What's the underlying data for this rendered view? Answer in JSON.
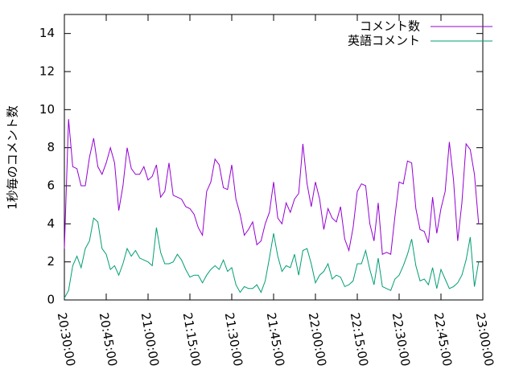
{
  "chart_data": {
    "type": "line",
    "y_label": "1秒毎のコメント数",
    "x": [
      "20:30:00",
      "20:31:30",
      "20:33:00",
      "20:34:30",
      "20:36:00",
      "20:37:30",
      "20:39:00",
      "20:40:30",
      "20:42:00",
      "20:43:30",
      "20:45:00",
      "20:46:30",
      "20:48:00",
      "20:49:30",
      "20:51:00",
      "20:52:30",
      "20:54:00",
      "20:55:30",
      "20:57:00",
      "20:58:30",
      "21:00:00",
      "21:01:30",
      "21:03:00",
      "21:04:30",
      "21:06:00",
      "21:07:30",
      "21:09:00",
      "21:10:30",
      "21:12:00",
      "21:13:30",
      "21:15:00",
      "21:16:30",
      "21:18:00",
      "21:19:30",
      "21:21:00",
      "21:22:30",
      "21:24:00",
      "21:25:30",
      "21:27:00",
      "21:28:30",
      "21:30:00",
      "21:31:30",
      "21:33:00",
      "21:34:30",
      "21:36:00",
      "21:37:30",
      "21:39:00",
      "21:40:30",
      "21:42:00",
      "21:43:30",
      "21:45:00",
      "21:46:30",
      "21:48:00",
      "21:49:30",
      "21:51:00",
      "21:52:30",
      "21:54:00",
      "21:55:30",
      "21:57:00",
      "21:58:30",
      "22:00:00",
      "22:01:30",
      "22:03:00",
      "22:04:30",
      "22:06:00",
      "22:07:30",
      "22:09:00",
      "22:10:30",
      "22:12:00",
      "22:13:30",
      "22:15:00",
      "22:16:30",
      "22:18:00",
      "22:19:30",
      "22:21:00",
      "22:22:30",
      "22:24:00",
      "22:25:30",
      "22:27:00",
      "22:28:30",
      "22:30:00",
      "22:31:30",
      "22:33:00",
      "22:34:30",
      "22:36:00",
      "22:37:30",
      "22:39:00",
      "22:40:30",
      "22:42:00",
      "22:43:30",
      "22:45:00",
      "22:46:30",
      "22:48:00",
      "22:49:30",
      "22:51:00",
      "22:52:30",
      "22:54:00",
      "22:55:30",
      "22:57:00",
      "22:58:30"
    ],
    "series": [
      {
        "name": "コメント数",
        "color": "#9400d3",
        "values": [
          2.7,
          9.5,
          7,
          6.9,
          6,
          6,
          7.5,
          8.5,
          7,
          6.6,
          7.2,
          8,
          7.2,
          4.7,
          6,
          8,
          6.9,
          6.6,
          6.6,
          7,
          6.3,
          6.5,
          7.1,
          5.4,
          5.7,
          7.2,
          5.5,
          5.4,
          5.3,
          4.9,
          4.8,
          4.5,
          3.8,
          3.4,
          5.7,
          6.2,
          7.4,
          7.1,
          5.9,
          5.8,
          7.1,
          5.3,
          4.5,
          3.4,
          3.7,
          4.1,
          2.9,
          3.1,
          4,
          4.6,
          6.2,
          4.3,
          4,
          5.1,
          4.6,
          5.3,
          5.6,
          8.2,
          6.1,
          4.9,
          6.2,
          5.3,
          3.7,
          4.8,
          4.3,
          4.1,
          4.9,
          3.2,
          2.6,
          3.8,
          5.7,
          6.1,
          6,
          4,
          3.1,
          5.1,
          2.4,
          2.5,
          2.4,
          4.4,
          6.2,
          6.1,
          7.3,
          7.2,
          4.8,
          3.7,
          3.6,
          3.0,
          5.4,
          3.5,
          4.8,
          5.7,
          8.3,
          6.3,
          3.1,
          5.1,
          8.2,
          7.9,
          6.6,
          4.0
        ]
      },
      {
        "name": "英語コメント",
        "color": "#009e73",
        "values": [
          0.1,
          0.5,
          1.8,
          2.3,
          1.7,
          2.7,
          3.1,
          4.3,
          4.1,
          2.7,
          2.4,
          1.6,
          1.8,
          1.3,
          1.9,
          2.7,
          2.3,
          2.6,
          2.2,
          2.1,
          2.0,
          1.8,
          3.8,
          2.5,
          1.9,
          1.9,
          2.0,
          2.4,
          2.1,
          1.6,
          1.2,
          1.3,
          1.3,
          0.9,
          1.3,
          1.6,
          1.8,
          1.6,
          2.1,
          1.5,
          1.7,
          0.8,
          0.4,
          0.7,
          0.6,
          0.6,
          0.8,
          0.4,
          1.0,
          2.2,
          3.5,
          2.3,
          1.5,
          1.8,
          1.7,
          2.4,
          1.3,
          2.6,
          2.7,
          1.9,
          0.9,
          1.3,
          1.5,
          1.9,
          1.1,
          1.3,
          1.2,
          0.7,
          0.8,
          1.0,
          1.9,
          1.9,
          2.6,
          1.6,
          0.8,
          2.2,
          0.7,
          0.6,
          0.5,
          1.1,
          1.3,
          1.8,
          2.4,
          3.2,
          1.8,
          1.0,
          1.1,
          0.8,
          1.7,
          0.6,
          1.6,
          1.1,
          0.6,
          0.7,
          0.9,
          1.3,
          2.1,
          3.3,
          0.7,
          2.0
        ]
      }
    ],
    "xlim": [
      "20:30:00",
      "23:00:00"
    ],
    "xticks": [
      "20:30:00",
      "20:45:00",
      "21:00:00",
      "21:15:00",
      "21:30:00",
      "21:45:00",
      "22:00:00",
      "22:15:00",
      "22:30:00",
      "22:45:00",
      "23:00:00"
    ],
    "ylim": [
      0,
      15
    ],
    "yticks": [
      0,
      2,
      4,
      6,
      8,
      10,
      12,
      14
    ],
    "legend": "top-right"
  }
}
